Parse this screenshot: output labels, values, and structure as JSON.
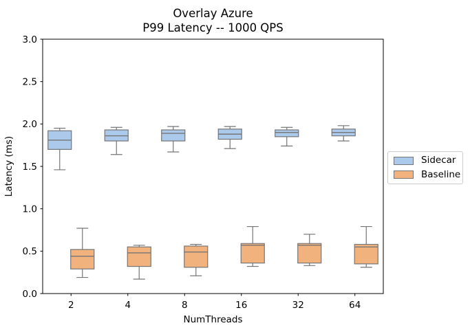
{
  "chart_data": {
    "type": "boxplot",
    "title_line1": "Overlay Azure",
    "title_line2": "P99 Latency -- 1000 QPS",
    "xlabel": "NumThreads",
    "ylabel": "Latency (ms)",
    "categories": [
      "2",
      "4",
      "8",
      "16",
      "32",
      "64"
    ],
    "ylim": [
      0.0,
      3.0
    ],
    "ytick_step": 0.5,
    "ytick_labels": [
      "0.0",
      "0.5",
      "1.0",
      "1.5",
      "2.0",
      "2.5",
      "3.0"
    ],
    "grid": false,
    "legend_position": "center-right-outside",
    "colors": {
      "axis": "#000000",
      "box_edge": "#757575",
      "legend_border": "#cccccc"
    },
    "series": [
      {
        "name": "Sidecar",
        "color": "#abc9ea",
        "boxes": [
          {
            "whislo": 1.46,
            "q1": 1.7,
            "med": 1.81,
            "q3": 1.92,
            "whishi": 1.95
          },
          {
            "whislo": 1.64,
            "q1": 1.8,
            "med": 1.86,
            "q3": 1.93,
            "whishi": 1.96
          },
          {
            "whislo": 1.67,
            "q1": 1.8,
            "med": 1.89,
            "q3": 1.93,
            "whishi": 1.97
          },
          {
            "whislo": 1.71,
            "q1": 1.82,
            "med": 1.88,
            "q3": 1.94,
            "whishi": 1.97
          },
          {
            "whislo": 1.74,
            "q1": 1.85,
            "med": 1.9,
            "q3": 1.93,
            "whishi": 1.96
          },
          {
            "whislo": 1.8,
            "q1": 1.86,
            "med": 1.9,
            "q3": 1.94,
            "whishi": 1.98
          }
        ]
      },
      {
        "name": "Baseline",
        "color": "#f2b27d",
        "boxes": [
          {
            "whislo": 0.19,
            "q1": 0.29,
            "med": 0.44,
            "q3": 0.52,
            "whishi": 0.77
          },
          {
            "whislo": 0.17,
            "q1": 0.32,
            "med": 0.48,
            "q3": 0.55,
            "whishi": 0.57
          },
          {
            "whislo": 0.21,
            "q1": 0.31,
            "med": 0.49,
            "q3": 0.56,
            "whishi": 0.58
          },
          {
            "whislo": 0.32,
            "q1": 0.36,
            "med": 0.57,
            "q3": 0.59,
            "whishi": 0.79
          },
          {
            "whislo": 0.33,
            "q1": 0.36,
            "med": 0.57,
            "q3": 0.59,
            "whishi": 0.7
          },
          {
            "whislo": 0.31,
            "q1": 0.35,
            "med": 0.55,
            "q3": 0.58,
            "whishi": 0.79
          }
        ]
      }
    ]
  }
}
